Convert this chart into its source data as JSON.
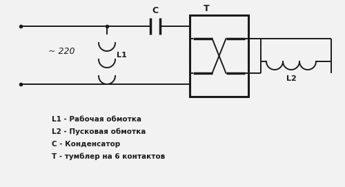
{
  "bg_color": "#f2f2f2",
  "line_color": "#1a1a1a",
  "labels": {
    "C": "C",
    "T": "T",
    "L1": "L1",
    "L2": "L2",
    "voltage": "~ 220"
  },
  "legend_lines": [
    "L1 - Рабочая обмотка",
    "L2 - Пусковая обмотка",
    "С - Конденсатор",
    "T - тумблер на 6 контактов"
  ],
  "figsize": [
    5.0,
    2.71
  ],
  "dpi": 100
}
